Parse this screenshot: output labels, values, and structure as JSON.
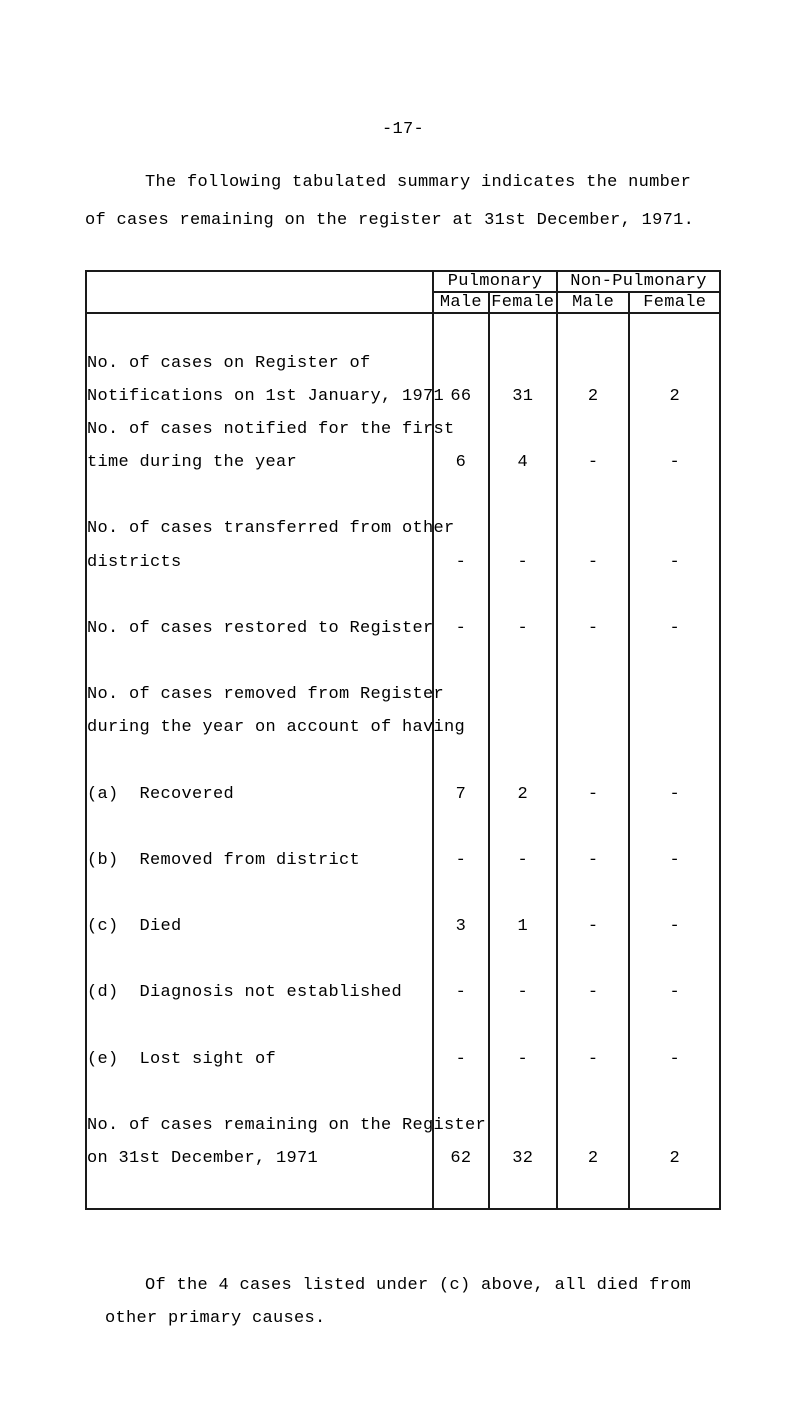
{
  "page_number": "-17-",
  "intro": {
    "line1": "The following tabulated summary indicates the number",
    "line2": "of cases remaining on the register at 31st December, 1971."
  },
  "table": {
    "group_headers": {
      "pulmonary": "Pulmonary",
      "non_pulmonary": "Non-Pulmonary"
    },
    "sub_headers": {
      "male": "Male",
      "female": "Female"
    },
    "rows": [
      {
        "blanks_before": 1,
        "text": [
          "No. of cases on Register of",
          "Notifications on 1st January, 1971"
        ],
        "pm": "66",
        "pf": "31",
        "nm": "2",
        "nf": "2",
        "val_line": 2
      },
      {
        "blanks_before": 0,
        "text": [
          "No. of cases notified for the first",
          "time during the year"
        ],
        "pm": "6",
        "pf": "4",
        "nm": "-",
        "nf": "-",
        "val_line": 2
      },
      {
        "blanks_before": 1,
        "text": [
          "No. of cases transferred from other",
          "districts"
        ],
        "pm": "-",
        "pf": "-",
        "nm": "-",
        "nf": "-",
        "val_line": 2
      },
      {
        "blanks_before": 1,
        "text": [
          "No. of cases restored to Register"
        ],
        "pm": "-",
        "pf": "-",
        "nm": "-",
        "nf": "-",
        "val_line": 1
      },
      {
        "blanks_before": 1,
        "text": [
          "No. of cases removed from Register",
          "during the year on account of having"
        ],
        "pm": "",
        "pf": "",
        "nm": "",
        "nf": "",
        "val_line": 0
      },
      {
        "blanks_before": 1,
        "text": [
          "(a)  Recovered"
        ],
        "pm": "7",
        "pf": "2",
        "nm": "-",
        "nf": "-",
        "val_line": 1
      },
      {
        "blanks_before": 1,
        "text": [
          "(b)  Removed from district"
        ],
        "pm": "-",
        "pf": "-",
        "nm": "-",
        "nf": "-",
        "val_line": 1
      },
      {
        "blanks_before": 1,
        "text": [
          "(c)  Died"
        ],
        "pm": "3",
        "pf": "1",
        "nm": "-",
        "nf": "-",
        "val_line": 1
      },
      {
        "blanks_before": 1,
        "text": [
          "(d)  Diagnosis not established"
        ],
        "pm": "-",
        "pf": "-",
        "nm": "-",
        "nf": "-",
        "val_line": 1
      },
      {
        "blanks_before": 1,
        "text": [
          "(e)  Lost sight of"
        ],
        "pm": "-",
        "pf": "-",
        "nm": "-",
        "nf": "-",
        "val_line": 1
      },
      {
        "blanks_before": 1,
        "text": [
          "No. of cases remaining on the Register",
          "on 31st December, 1971"
        ],
        "pm": "62",
        "pf": "32",
        "nm": "2",
        "nf": "2",
        "val_line": 2,
        "blanks_after": 1
      }
    ]
  },
  "footer": {
    "line1": "Of the 4 cases listed under (c) above, all died from",
    "line2": "other primary causes."
  }
}
